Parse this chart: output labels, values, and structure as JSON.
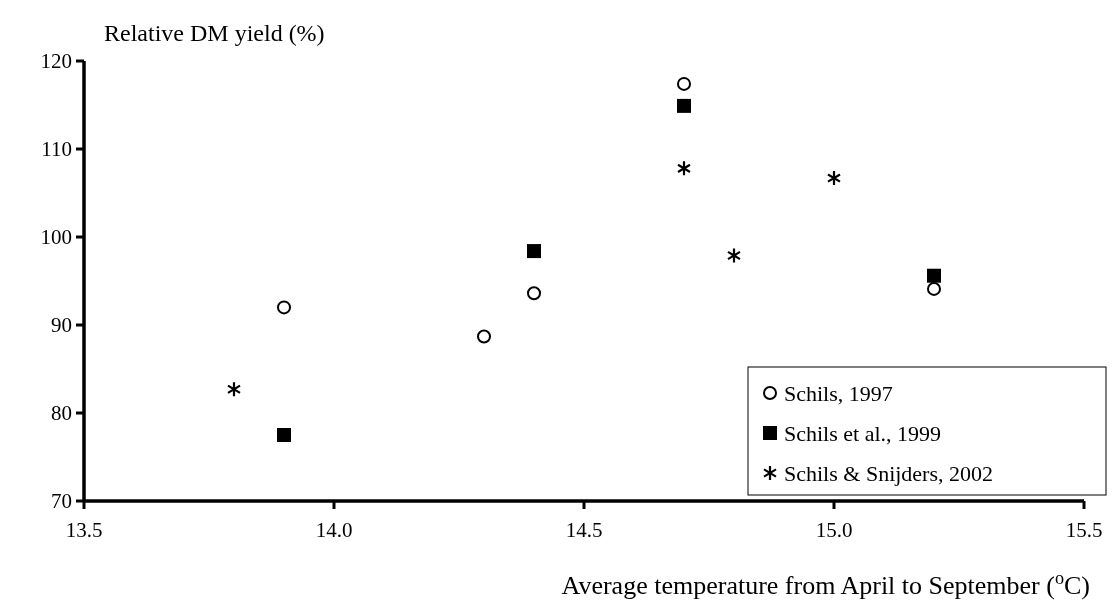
{
  "chart_data": {
    "type": "scatter",
    "xlabel": "Average temperature from April to September ($^{o}$C)",
    "ylabel": "Relative DM yield (%)",
    "xlim": [
      13.5,
      15.5
    ],
    "xticks": [
      {
        "value": 13.5,
        "label": "13.5"
      },
      {
        "value": 14,
        "label": "14.0"
      },
      {
        "value": 14.5,
        "label": "14.5"
      },
      {
        "value": 15,
        "label": "15.0"
      },
      {
        "value": 15.5,
        "label": "15.5"
      }
    ],
    "ylim": [
      70,
      120
    ],
    "yticks": [
      70,
      80,
      90,
      100,
      110,
      120
    ],
    "legend": "bottom right",
    "grid": false,
    "series": [
      {
        "name": "Schils, 1997",
        "color": "#000000",
        "marker": "circle",
        "x": [
          13.9,
          14.3,
          14.4,
          14.7,
          15.2
        ],
        "values": [
          92.0,
          88.7,
          93.6,
          117.4,
          94.1
        ]
      },
      {
        "name": "Schils et al., 1999",
        "color": "#000000",
        "marker": "square",
        "x": [
          13.9,
          14.4,
          14.7,
          15.2
        ],
        "values": [
          77.5,
          98.4,
          114.9,
          95.6
        ]
      },
      {
        "name": "Schils & Snijders, 2002",
        "color": "#000000",
        "marker": "cross",
        "x": [
          13.8,
          14.7,
          14.8,
          15.0
        ],
        "values": [
          82.7,
          107.8,
          97.9,
          106.7
        ]
      }
    ]
  }
}
